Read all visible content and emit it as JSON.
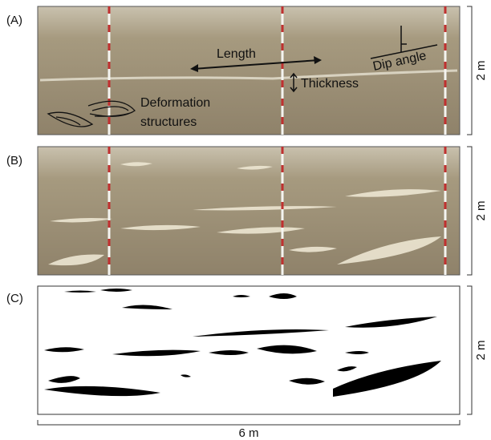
{
  "panels": [
    {
      "label": "(A)",
      "scale": "2 m"
    },
    {
      "label": "(B)",
      "scale": "2 m"
    },
    {
      "label": "(C)",
      "scale": "2 m"
    }
  ],
  "annotations": {
    "length": "Length",
    "thickness": "Thickness",
    "dip_angle": "Dip angle",
    "deformation": [
      "Deformation",
      "structures"
    ]
  },
  "width_scale": "6 m"
}
